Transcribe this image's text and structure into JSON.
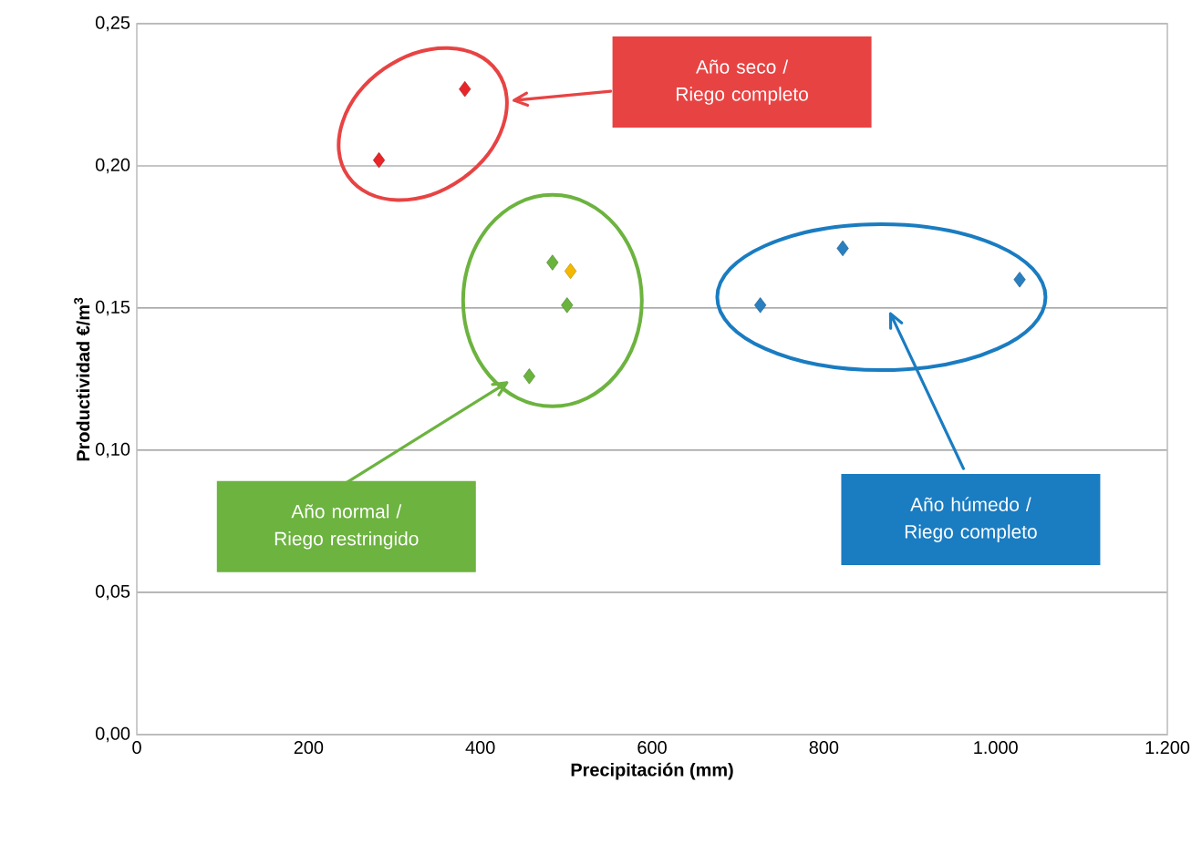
{
  "chart_data": {
    "type": "scatter",
    "xlabel": "Precipitación (mm)",
    "ylabel": "Productividad €/m$^{3}$",
    "xlim": [
      0,
      1200
    ],
    "ylim": [
      0,
      0.25
    ],
    "xticks": [
      {
        "value": 0,
        "label": "0"
      },
      {
        "value": 200,
        "label": "200"
      },
      {
        "value": 400,
        "label": "400"
      },
      {
        "value": 600,
        "label": "600"
      },
      {
        "value": 800,
        "label": "800"
      },
      {
        "value": 1000,
        "label": "1.000"
      },
      {
        "value": 1200,
        "label": "1.200"
      }
    ],
    "yticks": [
      {
        "value": 0,
        "label": "0,00"
      },
      {
        "value": 0.05,
        "label": "0,05"
      },
      {
        "value": 0.1,
        "label": "0,10"
      },
      {
        "value": 0.15,
        "label": "0,15"
      },
      {
        "value": 0.2,
        "label": "0,20"
      },
      {
        "value": 0.25,
        "label": "0,25"
      }
    ],
    "grid": "y",
    "marker": "diamond",
    "series": [
      {
        "color": "#e8262a",
        "x": [
          282,
          382
        ],
        "values": [
          0.202,
          0.227
        ]
      },
      {
        "color": "#6ab43e",
        "x": [
          457,
          484,
          501
        ],
        "values": [
          0.126,
          0.166,
          0.151
        ]
      },
      {
        "color": "#f5b800",
        "x": [
          505
        ],
        "values": [
          0.163
        ]
      },
      {
        "color": "#2a7fc0",
        "x": [
          726,
          822,
          1028
        ],
        "values": [
          0.151,
          0.171,
          0.16
        ]
      }
    ],
    "annotations": [
      "Año seco / Riego completo",
      "Año normal / Riego restringido",
      "Año húmedo / Riego completo"
    ]
  }
}
